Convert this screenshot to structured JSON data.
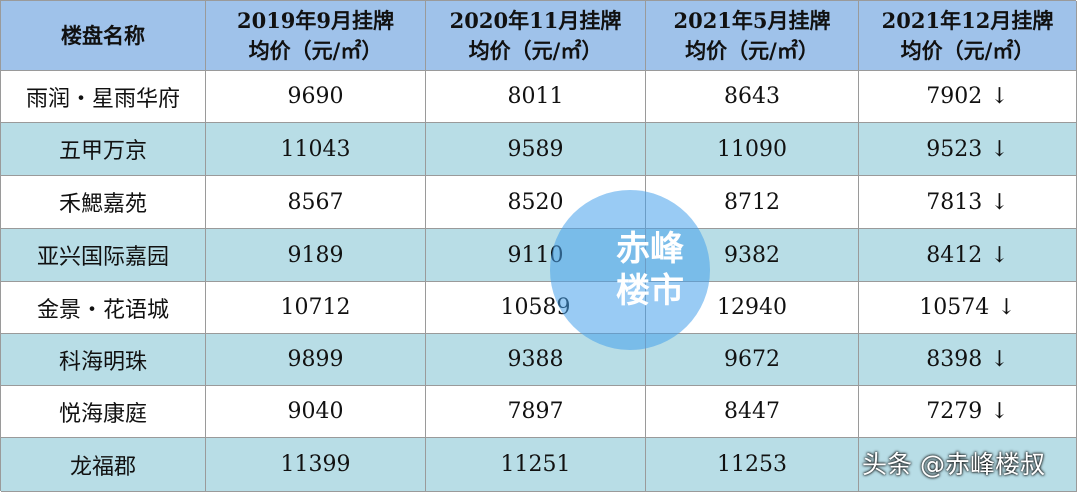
{
  "table": {
    "header": [
      "楼盘名称",
      [
        "2019年9月挂牌",
        "均价（元/㎡）"
      ],
      [
        "2020年11月挂牌",
        "均价（元/㎡）"
      ],
      [
        "2021年5月挂牌",
        "均价（元/㎡）"
      ],
      [
        "2021年12月挂牌",
        "均价（元/㎡）"
      ]
    ],
    "rows": [
      {
        "name": "雨润・星雨华府",
        "values": [
          9690,
          8011,
          8643,
          7902
        ],
        "trend": "↓"
      },
      {
        "name": "五甲万京",
        "values": [
          11043,
          9589,
          11090,
          9523
        ],
        "trend": "↓"
      },
      {
        "name": "禾鰓嘉苑",
        "values": [
          8567,
          8520,
          8712,
          7813
        ],
        "trend": "↓"
      },
      {
        "name": "亚兴国际嘉园",
        "values": [
          9189,
          9110,
          9382,
          8412
        ],
        "trend": "↓"
      },
      {
        "name": "金景・花语城",
        "values": [
          10712,
          10589,
          12940,
          10574
        ],
        "trend": "↓"
      },
      {
        "name": "科海明珠",
        "values": [
          9899,
          9388,
          9672,
          8398
        ],
        "trend": "↓"
      },
      {
        "name": "悦海康庭",
        "values": [
          9040,
          7897,
          8447,
          7279
        ],
        "trend": "↓"
      },
      {
        "name": "龙福郡",
        "values": [
          11399,
          11251,
          11253
        ],
        "trend": null
      }
    ]
  },
  "watermark": [
    "赤峰",
    "楼市"
  ],
  "footer": "头条 @赤峰楼叔"
}
